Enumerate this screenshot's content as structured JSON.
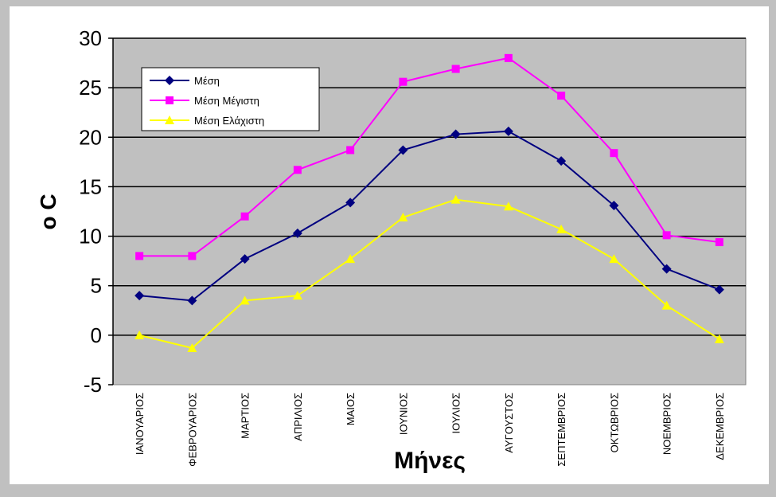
{
  "chart_data": {
    "type": "line",
    "xlabel": "Μήνες",
    "ylabel": "o C",
    "ylim": [
      -5,
      30
    ],
    "yticks": [
      -5,
      0,
      5,
      10,
      15,
      20,
      25,
      30
    ],
    "grid": true,
    "legend_position": "top-left",
    "categories": [
      "ΙΑΝΟΥΑΡΙΟΣ",
      "ΦΕΒΡΟΥΑΡΙΟΣ",
      "ΜΑΡΤΙΟΣ",
      "ΑΠΡΙΛΙΟΣ",
      "ΜΑΙΟΣ",
      "ΙΟΥΝΙΟΣ",
      "ΙΟΥΛΙΟΣ",
      "ΑΥΓΟΥΣΤΟΣ",
      "ΣΕΠΤΕΜΒΡΙΟΣ",
      "ΟΚΤΩΒΡΙΟΣ",
      "ΝΟΕΜΒΡΙΟΣ",
      "ΔΕΚΕΜΒΡΙΟΣ"
    ],
    "series": [
      {
        "name": "Μέση",
        "color": "#000080",
        "marker": "diamond",
        "values": [
          4.0,
          3.5,
          7.7,
          10.3,
          13.4,
          18.7,
          20.3,
          20.6,
          17.6,
          13.1,
          6.7,
          4.6
        ]
      },
      {
        "name": "Μέση Μέγιστη",
        "color": "#ff00ff",
        "marker": "square",
        "values": [
          8.0,
          8.0,
          12.0,
          16.7,
          18.7,
          25.6,
          26.9,
          28.0,
          24.2,
          18.4,
          10.1,
          9.4
        ]
      },
      {
        "name": "Μέση Ελάχιστη",
        "color": "#ffff00",
        "marker": "triangle",
        "values": [
          0.0,
          -1.3,
          3.5,
          4.0,
          7.7,
          11.9,
          13.7,
          13.0,
          10.7,
          7.7,
          3.0,
          -0.4
        ]
      }
    ]
  }
}
